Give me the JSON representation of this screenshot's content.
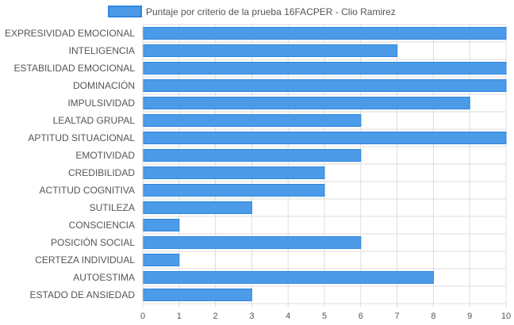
{
  "chart_data": {
    "type": "bar",
    "orientation": "horizontal",
    "categories": [
      "EXPRESIVIDAD EMOCIONAL",
      "INTELIGENCIA",
      "ESTABILIDAD EMOCIONAL",
      "DOMINACIÓN",
      "IMPULSIVIDAD",
      "LEALTAD GRUPAL",
      "APTITUD SITUACIONAL",
      "EMOTIVIDAD",
      "CREDIBILIDAD",
      "ACTITUD COGNITIVA",
      "SUTILEZA",
      "CONSCIENCIA",
      "POSICIÓN SOCIAL",
      "CERTEZA INDIVIDUAL",
      "AUTOESTIMA",
      "ESTADO DE ANSIEDAD"
    ],
    "series": [
      {
        "name": "Puntaje por criterio de la prueba 16FACPER - Clio Ramirez",
        "values": [
          10,
          7,
          10,
          10,
          9,
          6,
          10,
          6,
          5,
          5,
          3,
          1,
          6,
          1,
          8,
          3
        ]
      }
    ],
    "xlim": [
      0,
      10
    ],
    "xticks": [
      "0",
      "1",
      "2",
      "3",
      "4",
      "5",
      "6",
      "7",
      "8",
      "9",
      "10"
    ],
    "grid": true,
    "legend_position": "top",
    "colors": {
      "bar_fill": "#4b9be8",
      "bar_stroke": "#2f86e0",
      "grid": "#dddddd",
      "text": "#555555"
    }
  }
}
